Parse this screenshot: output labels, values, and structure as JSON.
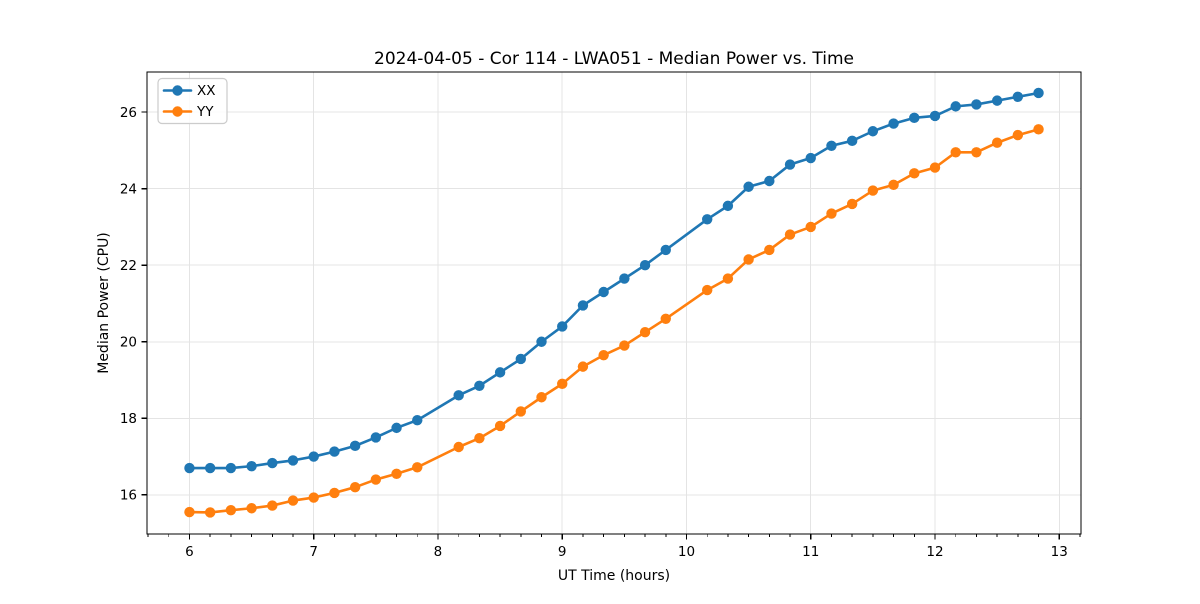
{
  "chart_data": {
    "type": "line",
    "title": "2024-04-05 - Cor 114 - LWA051 - Median Power vs. Time",
    "xlabel": "UT Time (hours)",
    "ylabel": "Median Power (CPU)",
    "xlim": [
      5.6583,
      13.175
    ],
    "ylim": [
      14.977,
      27.048
    ],
    "xticks": [
      6,
      7,
      8,
      9,
      10,
      11,
      12,
      13
    ],
    "yticks": [
      16,
      18,
      20,
      22,
      24,
      26
    ],
    "x_minor_step": 0.16667,
    "grid": true,
    "legend_position": "upper-left",
    "marker": "circle",
    "x": [
      6.0,
      6.1667,
      6.3333,
      6.5,
      6.6667,
      6.8333,
      7.0,
      7.1667,
      7.3333,
      7.5,
      7.6667,
      7.8333,
      8.1667,
      8.3333,
      8.5,
      8.6667,
      8.8333,
      9.0,
      9.1667,
      9.3333,
      9.5,
      9.6667,
      9.8333,
      10.1667,
      10.3333,
      10.5,
      10.6667,
      10.8333,
      11.0,
      11.1667,
      11.3333,
      11.5,
      11.6667,
      11.8333,
      12.0,
      12.1667,
      12.3333,
      12.5,
      12.6667,
      12.8333
    ],
    "series": [
      {
        "name": "XX",
        "color": "#1f77b4",
        "values": [
          16.7,
          16.7,
          16.7,
          16.75,
          16.83,
          16.9,
          17.0,
          17.13,
          17.28,
          17.5,
          17.75,
          17.95,
          18.6,
          18.85,
          19.2,
          19.55,
          20.0,
          20.4,
          20.95,
          21.3,
          21.65,
          22.0,
          22.4,
          23.2,
          23.55,
          24.05,
          24.2,
          24.63,
          24.8,
          25.12,
          25.25,
          25.5,
          25.7,
          25.85,
          25.9,
          26.15,
          26.2,
          26.3,
          26.4,
          26.5
        ]
      },
      {
        "name": "YY",
        "color": "#ff7f0e",
        "values": [
          15.55,
          15.54,
          15.6,
          15.65,
          15.72,
          15.85,
          15.93,
          16.05,
          16.2,
          16.4,
          16.55,
          16.72,
          17.25,
          17.48,
          17.8,
          18.18,
          18.55,
          18.9,
          19.35,
          19.65,
          19.9,
          20.25,
          20.6,
          21.35,
          21.65,
          22.15,
          22.4,
          22.8,
          23.0,
          23.35,
          23.6,
          23.95,
          24.1,
          24.4,
          24.55,
          24.95,
          24.95,
          25.2,
          25.4,
          25.55
        ]
      }
    ],
    "style": {
      "grid_color": "#e4e4e4",
      "spine_color": "#000000",
      "background": "#ffffff"
    }
  }
}
